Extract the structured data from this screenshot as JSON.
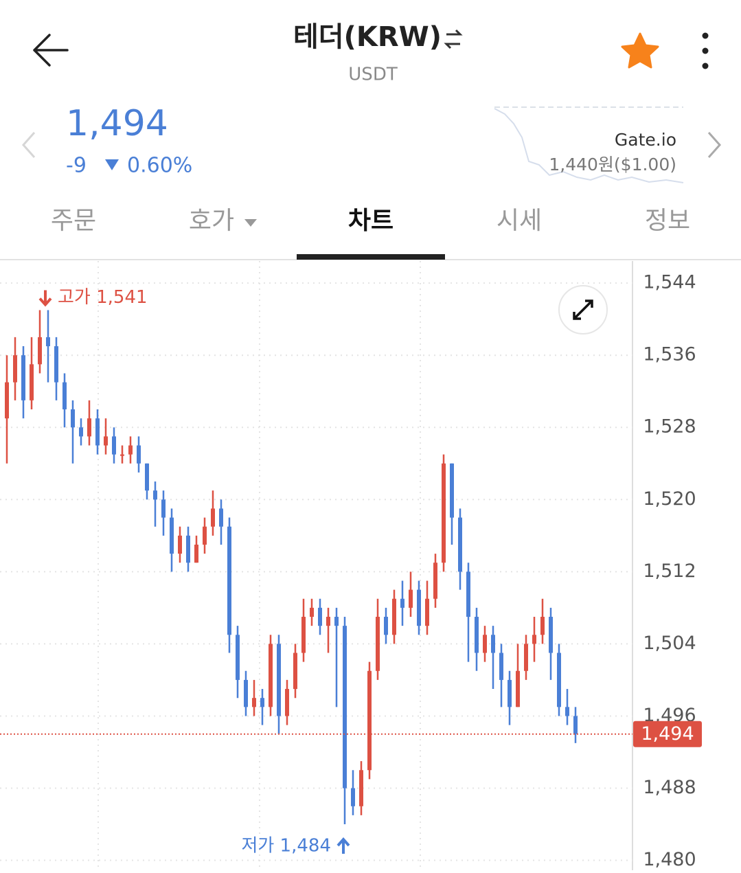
{
  "header": {
    "title": "테더(KRW)",
    "subtitle": "USDT"
  },
  "price": {
    "value": "1,494",
    "change": "-9",
    "change_pct": "0.60%"
  },
  "exchange": {
    "name": "Gate.io",
    "price": "1,440원($1.00)"
  },
  "tabs": [
    "주문",
    "호가",
    "차트",
    "시세",
    "정보"
  ],
  "chart_data": {
    "type": "candlestick",
    "open": [
      1529,
      1533,
      1536,
      1531,
      1535,
      1538,
      1537,
      1533,
      1530,
      1528,
      1527,
      1529,
      1526,
      1527,
      1525,
      1525,
      1526,
      1524,
      1521,
      1520,
      1518,
      1514,
      1516,
      1513,
      1515,
      1517,
      1519,
      1517,
      1505,
      1500,
      1497,
      1498,
      1497,
      1504,
      1496,
      1499,
      1503,
      1507,
      1508,
      1506,
      1507,
      1506,
      1488,
      1486,
      1490,
      1501,
      1507,
      1505,
      1509,
      1508,
      1510,
      1506,
      1509,
      1513,
      1524,
      1518,
      1512,
      1507,
      1503,
      1505,
      1503,
      1500,
      1497,
      1501,
      1504,
      1505,
      1507,
      1503,
      1497,
      1496
    ],
    "high": [
      1536,
      1538,
      1537,
      1538,
      1541,
      1541,
      1538,
      1534,
      1531,
      1529,
      1531,
      1530,
      1529,
      1528,
      1526,
      1527,
      1527,
      1524,
      1522,
      1521,
      1519,
      1517,
      1517,
      1516,
      1518,
      1521,
      1520,
      1518,
      1506,
      1501,
      1500,
      1499,
      1505,
      1505,
      1500,
      1504,
      1509,
      1509,
      1509,
      1508,
      1508,
      1507,
      1490,
      1491,
      1502,
      1509,
      1508,
      1510,
      1511,
      1512,
      1511,
      1511,
      1514,
      1525,
      1524,
      1519,
      1513,
      1508,
      1506,
      1506,
      1504,
      1501,
      1504,
      1505,
      1507,
      1509,
      1508,
      1504,
      1499,
      1497
    ],
    "low": [
      1524,
      1531,
      1529,
      1530,
      1534,
      1533,
      1531,
      1528,
      1524,
      1526,
      1526,
      1525,
      1525,
      1524,
      1524,
      1524,
      1523,
      1520,
      1517,
      1516,
      1512,
      1513,
      1512,
      1513,
      1514,
      1516,
      1515,
      1503,
      1498,
      1496,
      1496,
      1495,
      1496,
      1494,
      1495,
      1498,
      1502,
      1506,
      1505,
      1503,
      1497,
      1484,
      1485,
      1485,
      1489,
      1500,
      1504,
      1504,
      1506,
      1507,
      1505,
      1505,
      1508,
      1512,
      1515,
      1510,
      1502,
      1501,
      1502,
      1499,
      1497,
      1495,
      1497,
      1500,
      1502,
      1504,
      1500,
      1496,
      1495,
      1493
    ],
    "close": [
      1533,
      1536,
      1531,
      1535,
      1538,
      1537,
      1533,
      1530,
      1528,
      1527,
      1529,
      1526,
      1527,
      1525,
      1525,
      1526,
      1524,
      1521,
      1520,
      1518,
      1514,
      1516,
      1513,
      1515,
      1517,
      1519,
      1517,
      1505,
      1500,
      1497,
      1498,
      1497,
      1504,
      1496,
      1499,
      1503,
      1507,
      1508,
      1506,
      1507,
      1506,
      1488,
      1486,
      1490,
      1501,
      1507,
      1505,
      1509,
      1508,
      1510,
      1506,
      1509,
      1513,
      1524,
      1518,
      1512,
      1507,
      1503,
      1505,
      1503,
      1500,
      1497,
      1501,
      1504,
      1505,
      1507,
      1503,
      1497,
      1496,
      1494
    ],
    "up_color": "#dd5143",
    "down_color": "#4a7fd6",
    "ylim": [
      1478.9,
      1546.6
    ],
    "yticks": [
      {
        "value": 1544,
        "label": "1,544"
      },
      {
        "value": 1536,
        "label": "1,536"
      },
      {
        "value": 1528,
        "label": "1,528"
      },
      {
        "value": 1520,
        "label": "1,520"
      },
      {
        "value": 1512,
        "label": "1,512"
      },
      {
        "value": 1504,
        "label": "1,504"
      },
      {
        "value": 1496,
        "label": "1,496"
      },
      {
        "value": 1488,
        "label": "1,488"
      },
      {
        "value": 1480,
        "label": "1,480"
      }
    ],
    "grid": true,
    "last_price": {
      "value": 1494,
      "label": "1,494"
    },
    "annotations": [
      "고가 1,541",
      "저가 1,484"
    ]
  }
}
